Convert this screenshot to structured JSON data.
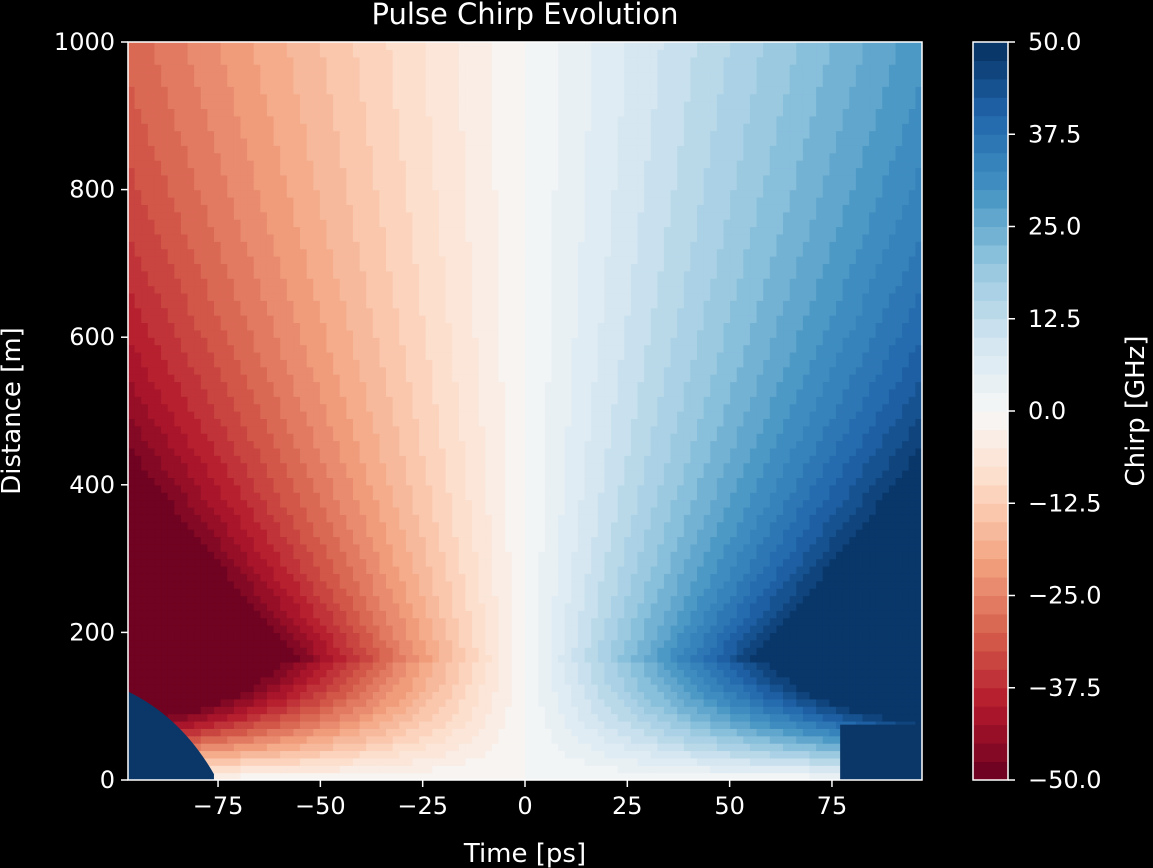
{
  "chart_data": {
    "type": "heatmap",
    "title": "Pulse Chirp Evolution",
    "xlabel": "Time [ps]",
    "ylabel": "Distance [m]",
    "xlim": [
      -97,
      97
    ],
    "ylim": [
      0,
      1000
    ],
    "x_ticks": [
      -75,
      -50,
      -25,
      0,
      25,
      50,
      75
    ],
    "x_tick_labels": [
      "−75",
      "−50",
      "−25",
      "0",
      "25",
      "50",
      "75"
    ],
    "y_ticks": [
      0,
      200,
      400,
      600,
      800,
      1000
    ],
    "y_tick_labels": [
      "0",
      "200",
      "400",
      "600",
      "800",
      "1000"
    ],
    "colorbar": {
      "label": "Chirp [GHz]",
      "range": [
        -50,
        50
      ],
      "ticks": [
        -50,
        -37.5,
        -25,
        -12.5,
        0,
        12.5,
        25,
        37.5,
        50
      ],
      "tick_labels": [
        "−50.0",
        "−37.5",
        "−25.0",
        "−12.5",
        "0.0",
        "12.5",
        "25.0",
        "37.5",
        "50.0"
      ],
      "levels": 40,
      "colormap": "RdBu",
      "colors": [
        "#67001f",
        "#b2182b",
        "#d6604d",
        "#f4a582",
        "#fddbc7",
        "#f7f7f7",
        "#d1e5f0",
        "#92c5de",
        "#4393c3",
        "#2166ac",
        "#053061"
      ]
    },
    "sampled_values": [
      {
        "distance": 1000,
        "time": -95,
        "chirp": -26
      },
      {
        "distance": 1000,
        "time": 0,
        "chirp": 0
      },
      {
        "distance": 1000,
        "time": 95,
        "chirp": 26
      },
      {
        "distance": 600,
        "time": -95,
        "chirp": -40
      },
      {
        "distance": 600,
        "time": 95,
        "chirp": 40
      },
      {
        "distance": 200,
        "time": -80,
        "chirp": -50
      },
      {
        "distance": 200,
        "time": 80,
        "chirp": 50
      },
      {
        "distance": 50,
        "time": -75,
        "chirp": -12
      },
      {
        "distance": 50,
        "time": 0,
        "chirp": 0
      },
      {
        "distance": 50,
        "time": 75,
        "chirp": 10
      }
    ],
    "grid": false
  }
}
